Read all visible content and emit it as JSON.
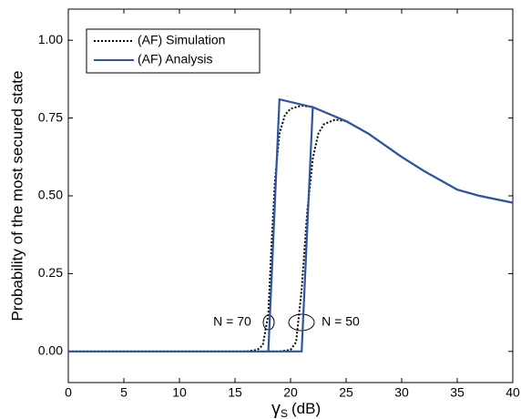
{
  "chart_data": {
    "type": "line",
    "xlabel": {
      "symbol": "γ",
      "sub": "S",
      "unit": "(dB)"
    },
    "ylabel": "Probability of the most secured state",
    "xlim": [
      0,
      40
    ],
    "ylim": [
      -0.1,
      1.1
    ],
    "xticks": [
      0,
      5,
      10,
      15,
      20,
      25,
      30,
      35,
      40
    ],
    "yticks": [
      {
        "value": 0,
        "label": "0.00"
      },
      {
        "value": 0.25,
        "label": "0.25"
      },
      {
        "value": 0.5,
        "label": "0.50"
      },
      {
        "value": 0.75,
        "label": "0.75"
      },
      {
        "value": 1,
        "label": "1.00"
      }
    ],
    "legend": "upper left",
    "series": [
      {
        "name": "(AF) Simulation",
        "color": "#000000",
        "line_style": "dotted",
        "x": [
          0,
          16,
          17,
          17.5,
          18,
          18.3,
          18.6,
          19,
          19.5,
          20,
          21,
          22,
          23,
          24,
          25,
          27,
          30,
          32,
          35,
          37,
          40,
          null,
          0,
          19,
          20,
          20.5,
          21,
          21.5,
          22,
          22.5,
          23,
          24,
          25,
          27,
          30,
          32,
          35,
          37,
          40
        ],
        "values": [
          0,
          0,
          0.005,
          0.02,
          0.12,
          0.35,
          0.55,
          0.7,
          0.76,
          0.78,
          0.79,
          0.785,
          0.77,
          0.755,
          0.74,
          0.7,
          0.625,
          0.58,
          0.52,
          0.5,
          0.478,
          null,
          0,
          0,
          0.005,
          0.03,
          0.2,
          0.45,
          0.62,
          0.7,
          0.73,
          0.745,
          0.74,
          0.7,
          0.625,
          0.58,
          0.52,
          0.5,
          0.478
        ]
      },
      {
        "name": "(AF) Analysis",
        "color": "#2e55a4",
        "line_style": "solid",
        "x": [
          0,
          18,
          19,
          22,
          23,
          24,
          25,
          27,
          30,
          32,
          35,
          37,
          40,
          null,
          0,
          21,
          22,
          23,
          24,
          25,
          27,
          30,
          32,
          35,
          37,
          40
        ],
        "values": [
          0,
          0,
          0.81,
          0.785,
          0.77,
          0.755,
          0.74,
          0.7,
          0.625,
          0.58,
          0.52,
          0.5,
          0.478,
          null,
          0,
          0,
          0.785,
          0.77,
          0.755,
          0.74,
          0.7,
          0.625,
          0.58,
          0.52,
          0.5,
          0.478
        ]
      }
    ],
    "annotations": [
      "N = 70",
      "N = 50"
    ]
  }
}
